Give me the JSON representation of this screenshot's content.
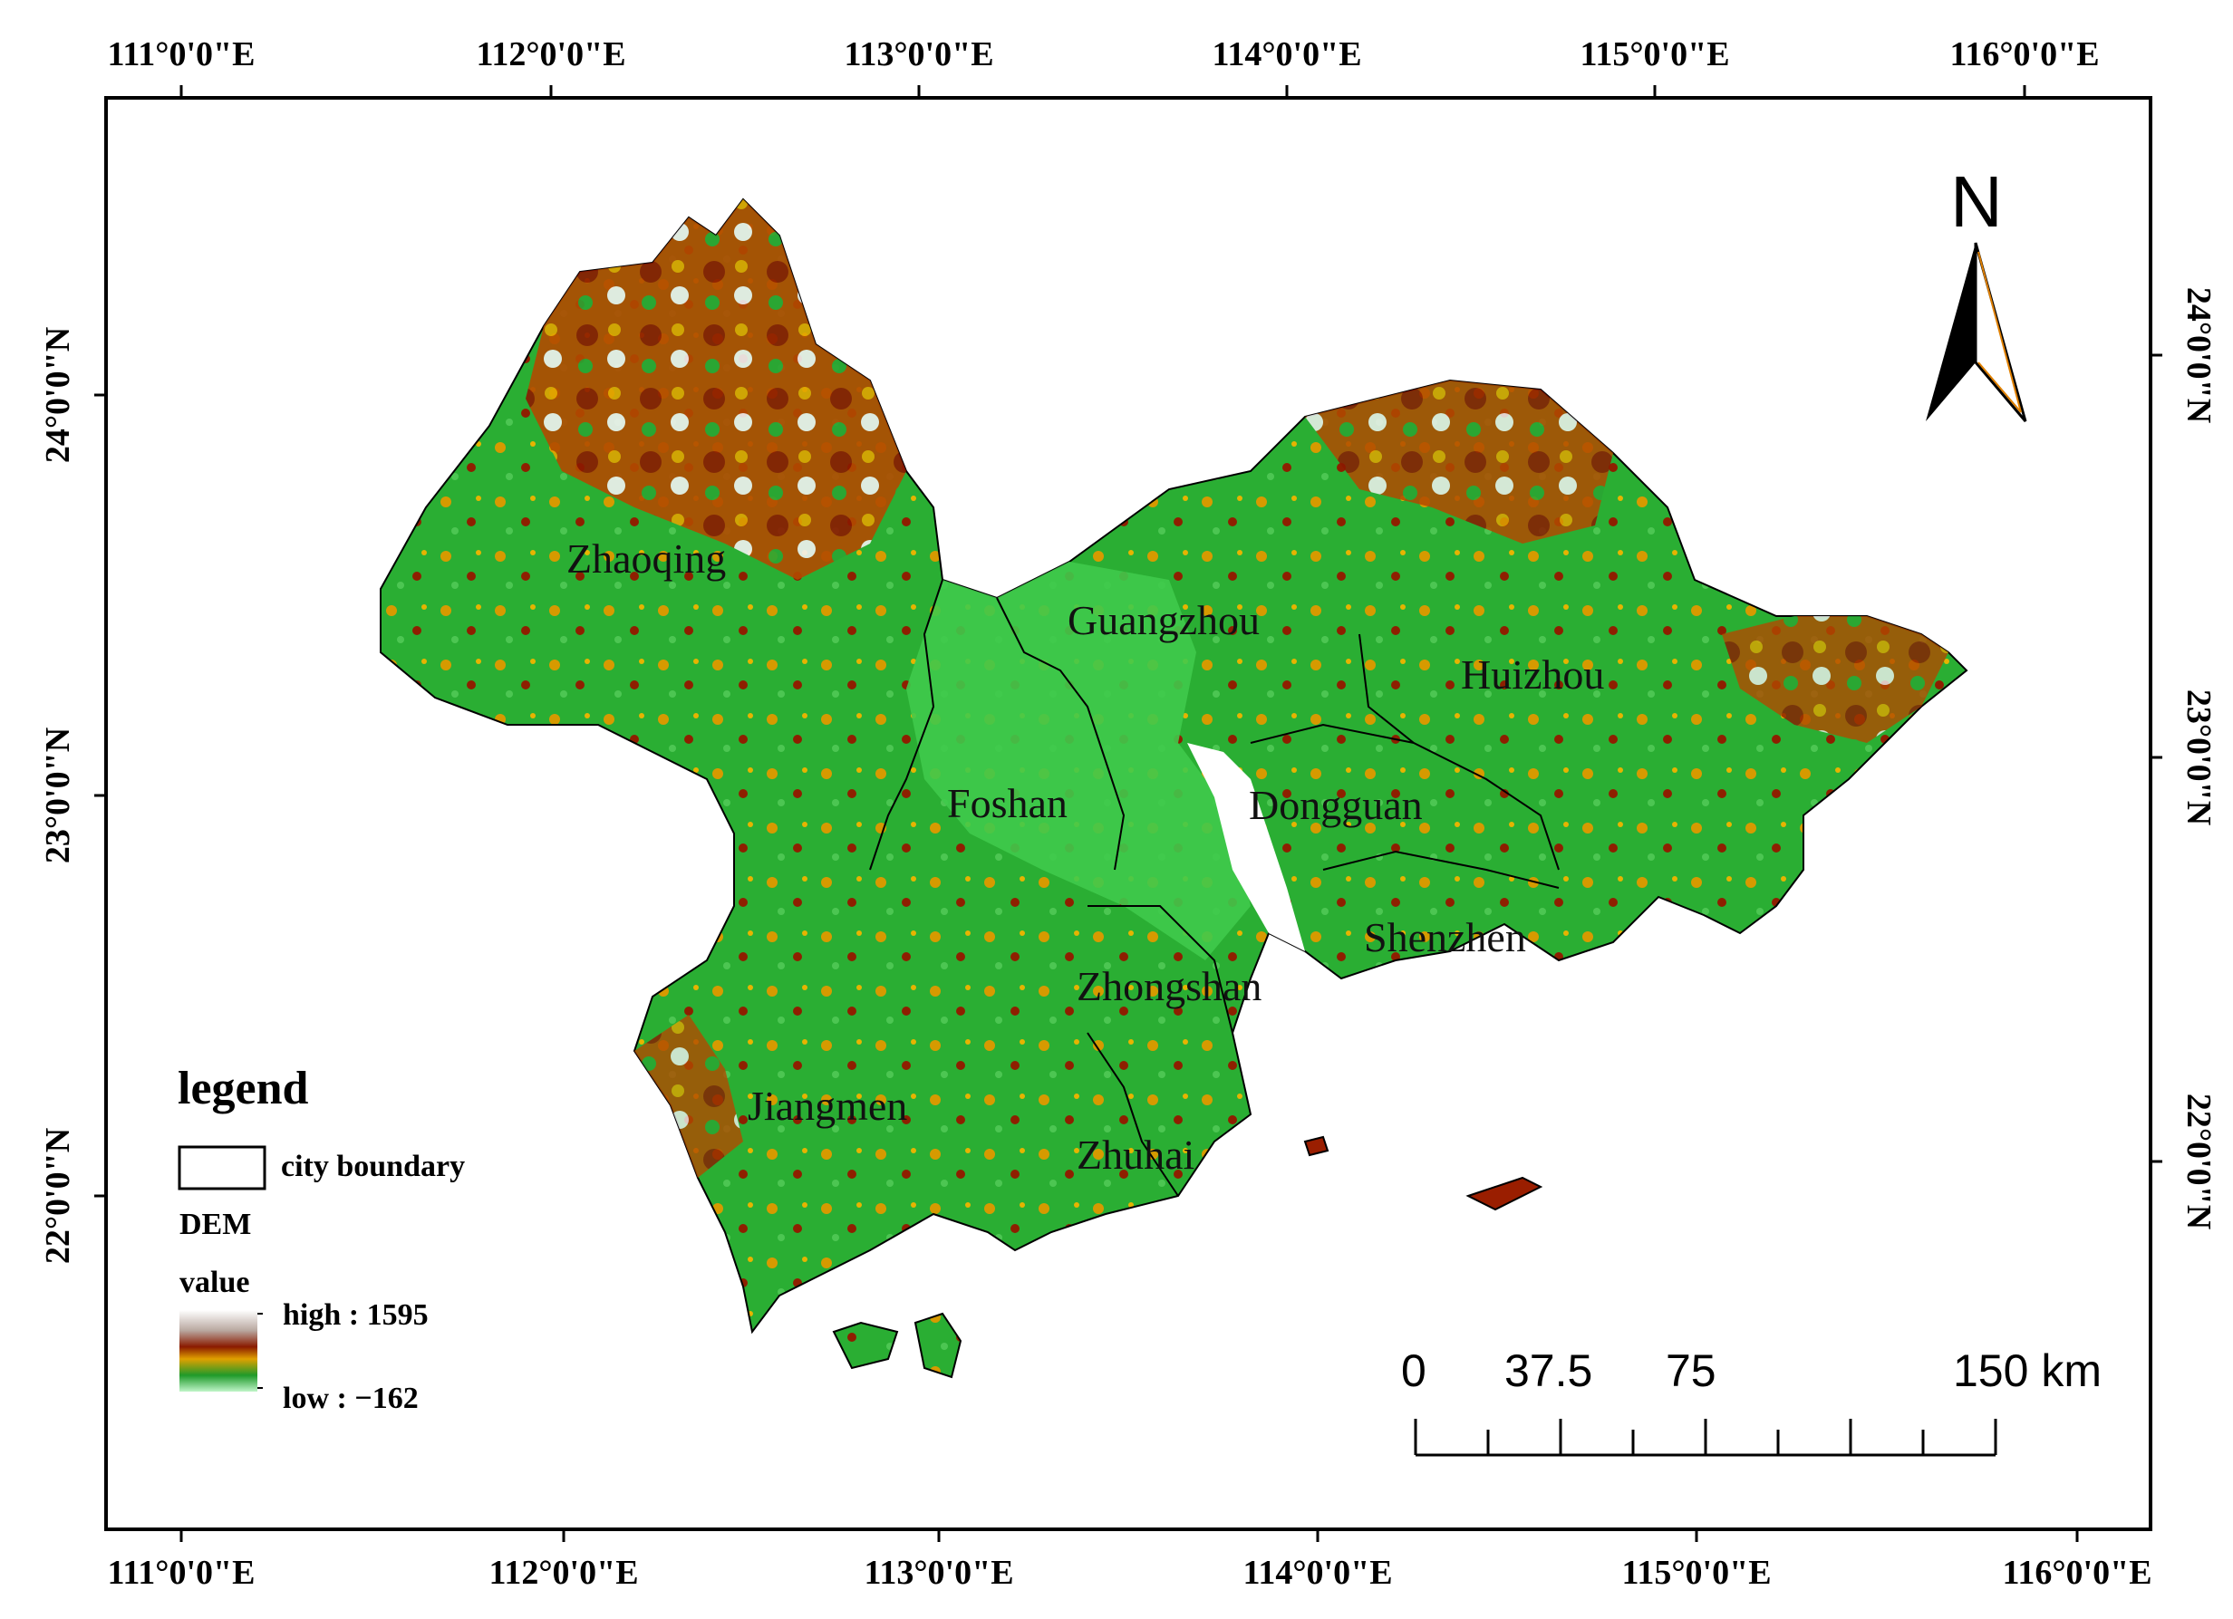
{
  "map": {
    "longitude_ticks": [
      "111°0'0\"E",
      "112°0'0\"E",
      "113°0'0\"E",
      "114°0'0\"E",
      "115°0'0\"E",
      "116°0'0\"E"
    ],
    "latitude_ticks": [
      "24°0'0\"N",
      "23°0'0\"N",
      "22°0'0\"N"
    ],
    "cities": [
      "Zhaoqing",
      "Guangzhou",
      "Huizhou",
      "Foshan",
      "Dongguan",
      "Shenzhen",
      "Zhongshan",
      "Jiangmen",
      "Zhuhai"
    ],
    "colors": {
      "lowland": "#22a92b",
      "plain": "#3fc94a",
      "mid": "#e0a000",
      "high": "#9a1e00",
      "peak": "#f4f4f4",
      "water": "#ffffff"
    }
  },
  "legend": {
    "title": "legend",
    "boundary_label": "city boundary",
    "dem_label": "DEM",
    "value_label": "value",
    "high_label": "high : 1595",
    "low_label": "low : −162",
    "dem_high": 1595,
    "dem_low": -162
  },
  "scale_bar": {
    "labels": [
      "0",
      "37.5",
      "75",
      "150 km"
    ]
  },
  "north_arrow": {
    "label": "N"
  }
}
